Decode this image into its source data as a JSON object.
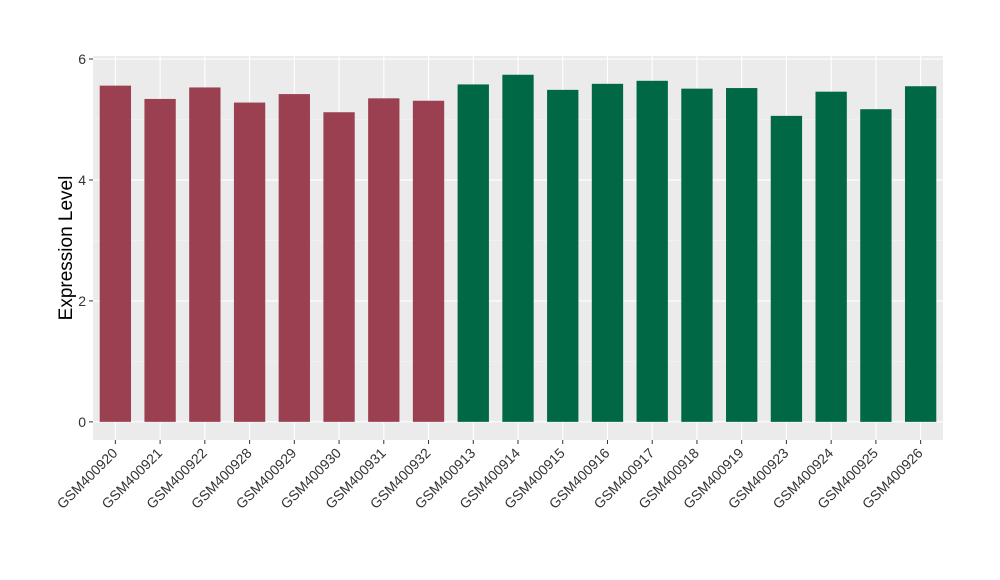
{
  "chart_data": {
    "type": "bar",
    "ylabel": "Expression Level",
    "xlabel": "",
    "title": "",
    "ylim": [
      -0.3,
      6.05
    ],
    "yticks": [
      0,
      2,
      4,
      6
    ],
    "grid": true,
    "legend": "none",
    "panel_color": "#ebebeb",
    "categories": [
      "GSM400920",
      "GSM400921",
      "GSM400922",
      "GSM400928",
      "GSM400929",
      "GSM400930",
      "GSM400931",
      "GSM400932",
      "GSM400913",
      "GSM400914",
      "GSM400915",
      "GSM400916",
      "GSM400917",
      "GSM400918",
      "GSM400919",
      "GSM400923",
      "GSM400924",
      "GSM400925",
      "GSM400926"
    ],
    "values": [
      5.56,
      5.34,
      5.53,
      5.28,
      5.42,
      5.12,
      5.35,
      5.31,
      5.58,
      5.74,
      5.49,
      5.59,
      5.64,
      5.51,
      5.52,
      5.06,
      5.46,
      5.17,
      5.55
    ],
    "bar_colors": [
      "#9a4050",
      "#9a4050",
      "#9a4050",
      "#9a4050",
      "#9a4050",
      "#9a4050",
      "#9a4050",
      "#9a4050",
      "#006845",
      "#006845",
      "#006845",
      "#006845",
      "#006845",
      "#006845",
      "#006845",
      "#006845",
      "#006845",
      "#006845",
      "#006845"
    ]
  }
}
